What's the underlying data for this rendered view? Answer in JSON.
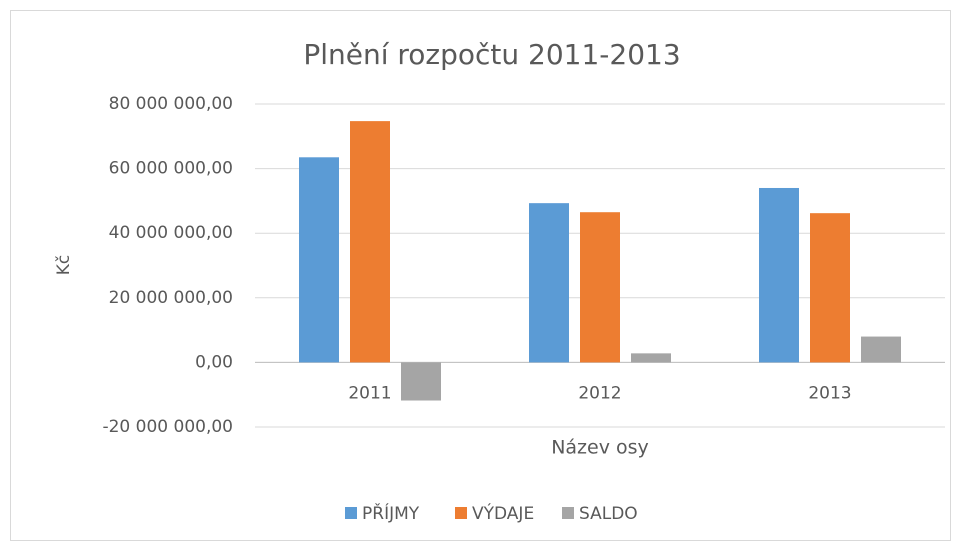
{
  "chart_data": {
    "type": "bar",
    "title": "Plnění rozpočtu 2011-2013",
    "y_label": "Kč",
    "x_label": "Název osy",
    "categories": [
      "2011",
      "2012",
      "2013"
    ],
    "series": [
      {
        "name": "PŘÍJMY",
        "color": "#5b9bd5",
        "values": [
          63500000,
          49300000,
          54000000
        ]
      },
      {
        "name": "VÝDAJE",
        "color": "#ed7d31",
        "values": [
          74700000,
          46500000,
          46200000
        ]
      },
      {
        "name": "SALDO",
        "color": "#a5a5a5",
        "values": [
          -11800000,
          2800000,
          8000000
        ]
      }
    ],
    "ylim": [
      -20000000,
      80000000
    ],
    "yticks": [
      {
        "value": -20000000,
        "label": "-20 000 000,00"
      },
      {
        "value": 0,
        "label": "0,00"
      },
      {
        "value": 20000000,
        "label": "20 000 000,00"
      },
      {
        "value": 40000000,
        "label": "40 000 000,00"
      },
      {
        "value": 60000000,
        "label": "60 000 000,00"
      },
      {
        "value": 80000000,
        "label": "80 000 000,00"
      }
    ],
    "grid": true,
    "legend": "bottom"
  }
}
